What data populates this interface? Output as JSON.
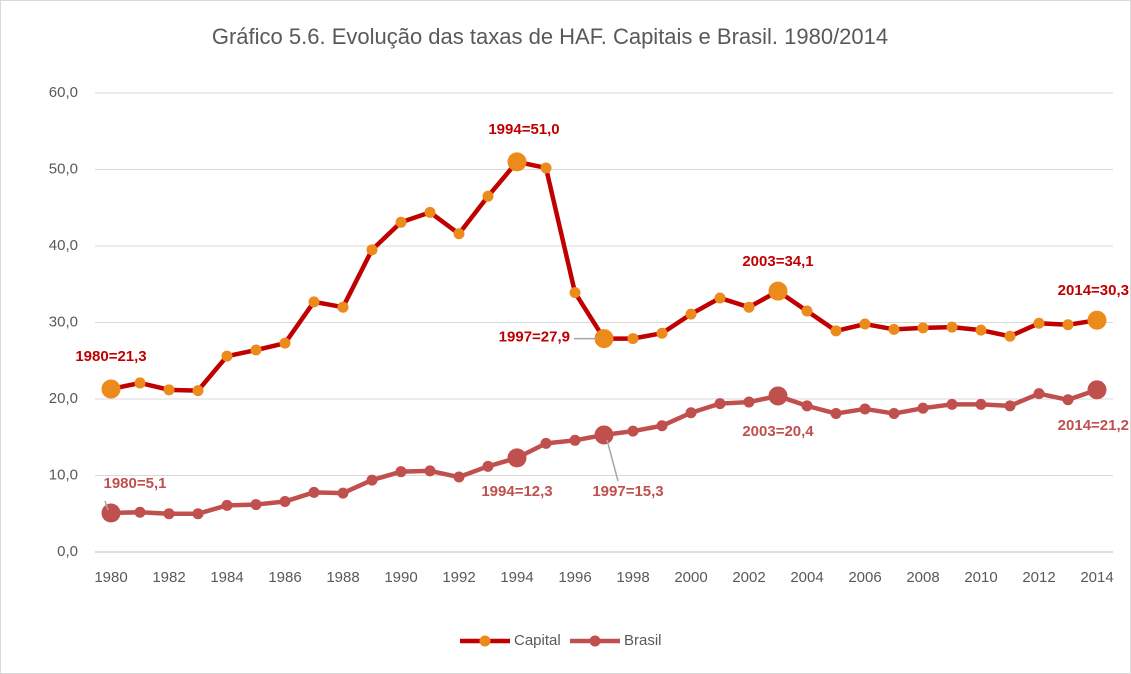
{
  "chart_data": {
    "type": "line",
    "title": "Gráfico 5.6. Evolução das taxas de HAF. Capitais e Brasil. 1980/2014",
    "categories": [
      "1980",
      null,
      "1982",
      null,
      "1984",
      null,
      "1986",
      null,
      "1988",
      null,
      "1990",
      null,
      "1992",
      null,
      "1994",
      null,
      "1996",
      null,
      "1998",
      null,
      "2000",
      null,
      "2002",
      null,
      "2004",
      null,
      "2006",
      null,
      "2008",
      null,
      "2010",
      null,
      "2012",
      null,
      "2014"
    ],
    "ylim": [
      0,
      60
    ],
    "yticks": [
      {
        "value": 0,
        "label": "0,0"
      },
      {
        "value": 10,
        "label": "10,0"
      },
      {
        "value": 20,
        "label": "20,0"
      },
      {
        "value": 30,
        "label": "30,0"
      },
      {
        "value": 40,
        "label": "40,0"
      },
      {
        "value": 50,
        "label": "50,0"
      },
      {
        "value": 60,
        "label": "60,0"
      }
    ],
    "grid": true,
    "legend": "bottom",
    "series": [
      {
        "name": "Capital",
        "color": "#c00000",
        "marker_color": "#ed8a1c",
        "label_color": "#c00000",
        "values": [
          21.3,
          22.1,
          21.2,
          21.1,
          25.6,
          26.4,
          27.3,
          32.7,
          32.0,
          39.5,
          43.1,
          44.4,
          41.6,
          46.5,
          51.0,
          50.2,
          33.9,
          27.9,
          27.9,
          28.6,
          31.1,
          33.2,
          32.0,
          34.1,
          31.5,
          28.9,
          29.8,
          29.1,
          29.3,
          29.4,
          29.0,
          28.2,
          29.9,
          29.7,
          30.3
        ],
        "value_labels": [
          "1980=21,3",
          null,
          null,
          null,
          null,
          null,
          null,
          null,
          null,
          null,
          null,
          null,
          null,
          null,
          "1994=51,0",
          null,
          null,
          "1997=27,9",
          null,
          null,
          null,
          null,
          null,
          "2003=34,1",
          null,
          null,
          null,
          null,
          null,
          null,
          null,
          null,
          null,
          null,
          "2014=30,3"
        ]
      },
      {
        "name": "Brasil",
        "color": "#c0504d",
        "marker_color": "#c0504d",
        "label_color": "#c0504d",
        "values": [
          5.1,
          5.2,
          5.0,
          5.0,
          6.1,
          6.2,
          6.6,
          7.8,
          7.7,
          9.4,
          10.5,
          10.6,
          9.8,
          11.2,
          12.3,
          14.2,
          14.6,
          15.3,
          15.8,
          16.5,
          18.2,
          19.4,
          19.6,
          20.4,
          19.1,
          18.1,
          18.7,
          18.1,
          18.8,
          19.3,
          19.3,
          19.1,
          20.7,
          19.9,
          21.2
        ],
        "value_labels": [
          "1980=5,1",
          null,
          null,
          null,
          null,
          null,
          null,
          null,
          null,
          null,
          null,
          null,
          null,
          null,
          "1994=12,3",
          null,
          null,
          "1997=15,3",
          null,
          null,
          null,
          null,
          null,
          "2003=20,4",
          null,
          null,
          null,
          null,
          null,
          null,
          null,
          null,
          null,
          null,
          "2014=21,2"
        ]
      }
    ]
  }
}
